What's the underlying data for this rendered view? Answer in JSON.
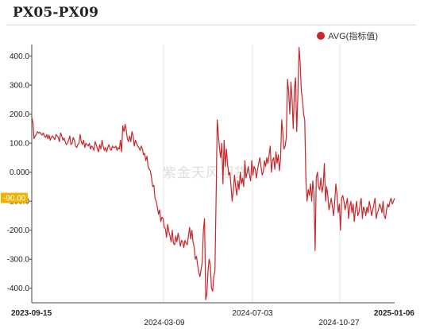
{
  "chart_data": {
    "type": "line",
    "title": "PX05-PX09",
    "watermark": "紫金天风期货",
    "series": [
      {
        "name": "AVG(指标值)",
        "color": "#c8262b",
        "y": [
          190,
          170,
          115,
          125,
          130,
          140,
          135,
          138,
          132,
          128,
          135,
          125,
          120,
          130,
          115,
          128,
          110,
          120,
          125,
          118,
          112,
          130,
          125,
          120,
          105,
          135,
          125,
          110,
          118,
          105,
          95,
          100,
          110,
          125,
          95,
          100,
          120,
          110,
          90,
          85,
          95,
          100,
          130,
          105,
          95,
          110,
          85,
          100,
          95,
          90,
          100,
          80,
          90,
          85,
          75,
          105,
          95,
          80,
          70,
          95,
          80,
          110,
          90,
          75,
          85,
          70,
          85,
          95,
          80,
          75,
          90,
          85,
          85,
          90,
          75,
          85,
          80,
          110,
          70,
          160,
          140,
          165,
          145,
          115,
          105,
          125,
          105,
          140,
          125,
          90,
          110,
          100,
          90,
          85,
          75,
          90,
          80,
          60,
          65,
          40,
          55,
          20,
          10,
          5,
          -20,
          -50,
          -45,
          -90,
          -100,
          -120,
          -145,
          -130,
          -170,
          -155,
          -160,
          -190,
          -195,
          -225,
          -180,
          -205,
          -220,
          -240,
          -200,
          -245,
          -250,
          -220,
          -240,
          -210,
          -230,
          -255,
          -235,
          -240,
          -260,
          -235,
          -245,
          -250,
          -220,
          -190,
          -230,
          -200,
          -240,
          -260,
          -300,
          -290,
          -320,
          -345,
          -360,
          -335,
          -310,
          -200,
          -160,
          -440,
          -420,
          -340,
          -300,
          -320,
          -400,
          -410,
          -360,
          -340,
          -100,
          180,
          130,
          80,
          50,
          100,
          -40,
          110,
          20,
          80,
          30,
          -10,
          0,
          -50,
          -100,
          -60,
          -10,
          -50,
          -80,
          -30,
          -60,
          0,
          -40,
          -20,
          -50,
          40,
          -20,
          0,
          20,
          -10,
          -30,
          40,
          -10,
          20,
          10,
          -20,
          10,
          30,
          50,
          20,
          -10,
          0,
          40,
          20,
          50,
          30,
          60,
          90,
          0,
          40,
          50,
          10,
          70,
          30,
          60,
          5,
          50,
          180,
          130,
          80,
          90,
          120,
          320,
          280,
          200,
          310,
          250,
          150,
          290,
          325,
          140,
          260,
          430,
          380,
          280,
          250,
          200,
          180,
          -30,
          -100,
          -60,
          -80,
          -40,
          -100,
          -30,
          -75,
          -270,
          -20,
          0,
          -50,
          -60,
          -20,
          -70,
          -45,
          30,
          -100,
          -50,
          -80,
          -130,
          -110,
          -90,
          -120,
          -150,
          -100,
          -40,
          -80,
          -140,
          -110,
          -200,
          -90,
          -80,
          -100,
          -130,
          -110,
          -90,
          -160,
          -120,
          -100,
          -140,
          -110,
          -170,
          -130,
          -100,
          -150,
          -140,
          -110,
          -90,
          -160,
          -120,
          -130,
          -150,
          -120,
          -140,
          -100,
          -120,
          -150,
          -130,
          -110,
          -90,
          -160,
          -140,
          -130,
          -110,
          -120,
          -140,
          -100,
          -150,
          -160,
          -130,
          -110,
          -120,
          -100,
          -90,
          -110,
          -100,
          -90
        ]
      }
    ],
    "x_ticks": [
      "2023-09-15",
      "2024-03-09",
      "2024-07-03",
      "2024-10-27",
      "2025-01-06"
    ],
    "y_ticks": [
      "400.0",
      "300.0",
      "200.0",
      "100.0",
      "0.000",
      "-100.0",
      "-200.0",
      "-300.0",
      "-400.0"
    ],
    "ylim": [
      -450,
      440
    ],
    "cursor_value": "-90.00",
    "grid": "vertical",
    "legend_position": "top-right"
  }
}
